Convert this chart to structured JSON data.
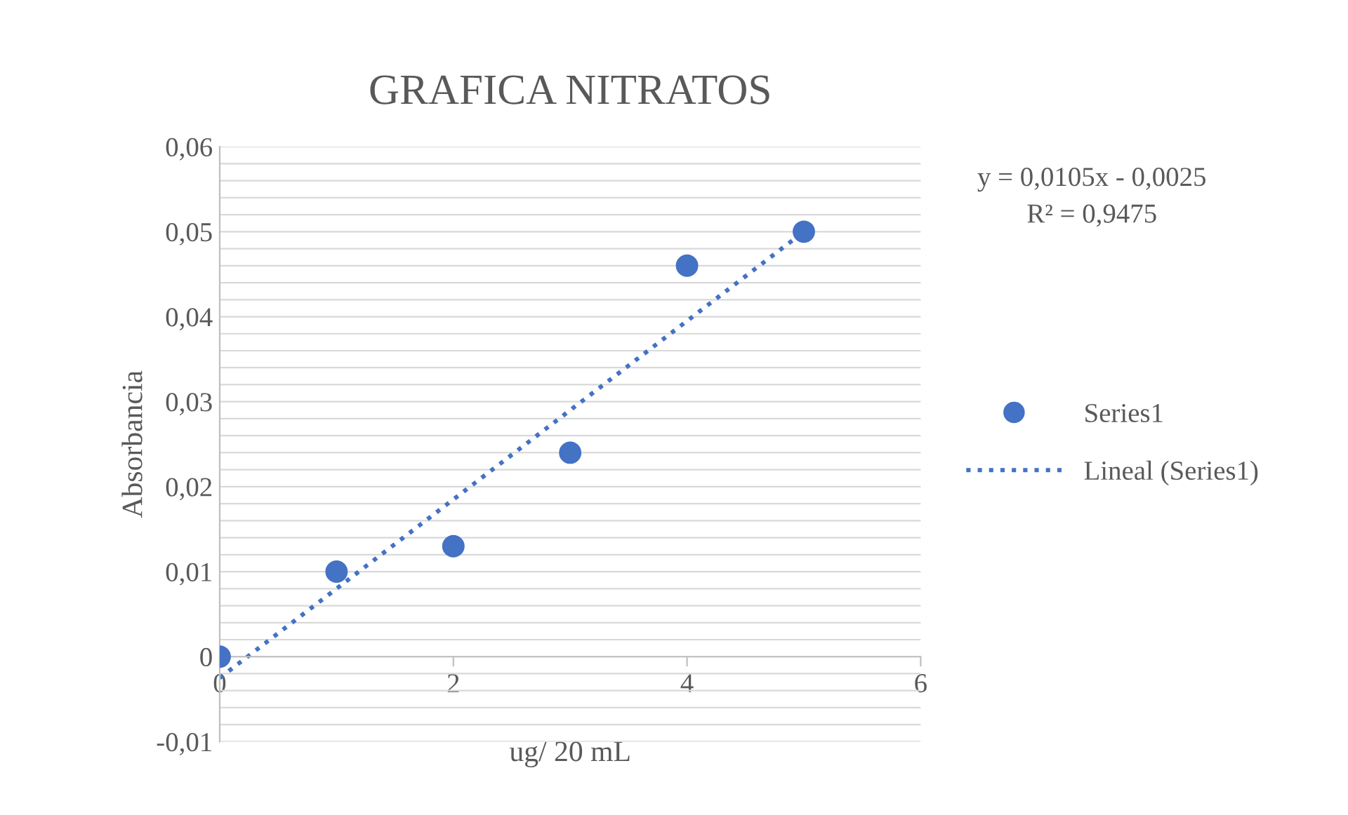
{
  "chart_data": {
    "type": "scatter",
    "title": "GRAFICA NITRATOS",
    "xlabel": "ug/ 20 mL",
    "ylabel": "Absorbancia",
    "annotations": [
      "y = 0,0105x - 0,0025",
      "R² = 0,9475"
    ],
    "series": [
      {
        "name": "Series1",
        "marker": "circle",
        "color": "#4472c4",
        "x": [
          0,
          1,
          2,
          3,
          4,
          5
        ],
        "values": [
          0,
          0.01,
          0.013,
          0.024,
          0.046,
          0.05
        ]
      },
      {
        "name": "Lineal (Series1)",
        "type": "line",
        "line_style": "dotted",
        "marker": "none",
        "color": "#4472c4",
        "x": [
          0,
          5
        ],
        "values": [
          -0.0025,
          0.05
        ]
      }
    ],
    "xlim": [
      0,
      6
    ],
    "xticks": [
      0,
      2,
      4,
      6
    ],
    "ylim": [
      -0.01,
      0.06
    ],
    "yticks": [
      {
        "value": -0.01,
        "label": "-0,01"
      },
      {
        "value": -0.008,
        "label": null
      },
      {
        "value": -0.006,
        "label": null
      },
      {
        "value": -0.004,
        "label": null
      },
      {
        "value": -0.002,
        "label": null
      },
      0,
      {
        "value": 0.002,
        "label": null
      },
      {
        "value": 0.004,
        "label": null
      },
      {
        "value": 0.006,
        "label": null
      },
      {
        "value": 0.008,
        "label": null
      },
      {
        "value": 0.01,
        "label": "0,01"
      },
      {
        "value": 0.012,
        "label": null
      },
      {
        "value": 0.014,
        "label": null
      },
      {
        "value": 0.016,
        "label": null
      },
      {
        "value": 0.018,
        "label": null
      },
      {
        "value": 0.02,
        "label": "0,02"
      },
      {
        "value": 0.022,
        "label": null
      },
      {
        "value": 0.024,
        "label": null
      },
      {
        "value": 0.026,
        "label": null
      },
      {
        "value": 0.028,
        "label": null
      },
      {
        "value": 0.03,
        "label": "0,03"
      },
      {
        "value": 0.032,
        "label": null
      },
      {
        "value": 0.034,
        "label": null
      },
      {
        "value": 0.036,
        "label": null
      },
      {
        "value": 0.038,
        "label": null
      },
      {
        "value": 0.04,
        "label": "0,04"
      },
      {
        "value": 0.042,
        "label": null
      },
      {
        "value": 0.044,
        "label": null
      },
      {
        "value": 0.046,
        "label": null
      },
      {
        "value": 0.048,
        "label": null
      },
      {
        "value": 0.05,
        "label": "0,05"
      },
      {
        "value": 0.052,
        "label": null
      },
      {
        "value": 0.054,
        "label": null
      },
      {
        "value": 0.056,
        "label": null
      },
      {
        "value": 0.058,
        "label": null
      },
      {
        "value": 0.06,
        "label": "0,06"
      }
    ],
    "grid": "y",
    "legend": "right"
  }
}
